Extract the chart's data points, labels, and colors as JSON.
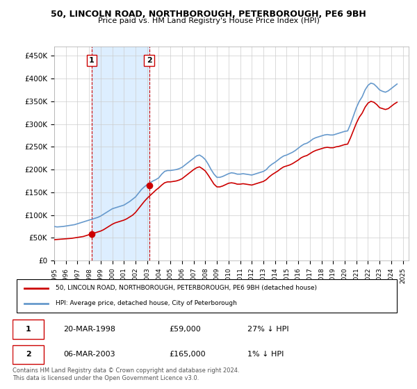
{
  "title": "50, LINCOLN ROAD, NORTHBOROUGH, PETERBOROUGH, PE6 9BH",
  "subtitle": "Price paid vs. HM Land Registry's House Price Index (HPI)",
  "ylabel_ticks": [
    "£0",
    "£50K",
    "£100K",
    "£150K",
    "£200K",
    "£250K",
    "£300K",
    "£350K",
    "£400K",
    "£450K"
  ],
  "ytick_values": [
    0,
    50000,
    100000,
    150000,
    200000,
    250000,
    300000,
    350000,
    400000,
    450000
  ],
  "ylim": [
    0,
    470000
  ],
  "xlim_start": 1995.0,
  "xlim_end": 2025.5,
  "xticks": [
    1995,
    1996,
    1997,
    1998,
    1999,
    2000,
    2001,
    2002,
    2003,
    2004,
    2005,
    2006,
    2007,
    2008,
    2009,
    2010,
    2011,
    2012,
    2013,
    2014,
    2015,
    2016,
    2017,
    2018,
    2019,
    2020,
    2021,
    2022,
    2023,
    2024,
    2025
  ],
  "hpi_line_color": "#6699cc",
  "price_line_color": "#cc0000",
  "purchase_marker_color": "#cc0000",
  "background_color": "#ffffff",
  "plot_bg_color": "#ffffff",
  "shaded_region_color": "#ddeeff",
  "grid_color": "#cccccc",
  "purchase1": {
    "year": 1998.22,
    "value": 59000,
    "label": "1"
  },
  "purchase2": {
    "year": 2003.17,
    "value": 165000,
    "label": "2"
  },
  "legend_line1": "50, LINCOLN ROAD, NORTHBOROUGH, PETERBOROUGH, PE6 9BH (detached house)",
  "legend_line2": "HPI: Average price, detached house, City of Peterborough",
  "table_row1": [
    "1",
    "20-MAR-1998",
    "£59,000",
    "27% ↓ HPI"
  ],
  "table_row2": [
    "2",
    "06-MAR-2003",
    "£165,000",
    "1% ↓ HPI"
  ],
  "footnote": "Contains HM Land Registry data © Crown copyright and database right 2024.\nThis data is licensed under the Open Government Licence v3.0.",
  "hpi_data": {
    "years": [
      1995.0,
      1995.25,
      1995.5,
      1995.75,
      1996.0,
      1996.25,
      1996.5,
      1996.75,
      1997.0,
      1997.25,
      1997.5,
      1997.75,
      1998.0,
      1998.25,
      1998.5,
      1998.75,
      1999.0,
      1999.25,
      1999.5,
      1999.75,
      2000.0,
      2000.25,
      2000.5,
      2000.75,
      2001.0,
      2001.25,
      2001.5,
      2001.75,
      2002.0,
      2002.25,
      2002.5,
      2002.75,
      2003.0,
      2003.25,
      2003.5,
      2003.75,
      2004.0,
      2004.25,
      2004.5,
      2004.75,
      2005.0,
      2005.25,
      2005.5,
      2005.75,
      2006.0,
      2006.25,
      2006.5,
      2006.75,
      2007.0,
      2007.25,
      2007.5,
      2007.75,
      2008.0,
      2008.25,
      2008.5,
      2008.75,
      2009.0,
      2009.25,
      2009.5,
      2009.75,
      2010.0,
      2010.25,
      2010.5,
      2010.75,
      2011.0,
      2011.25,
      2011.5,
      2011.75,
      2012.0,
      2012.25,
      2012.5,
      2012.75,
      2013.0,
      2013.25,
      2013.5,
      2013.75,
      2014.0,
      2014.25,
      2014.5,
      2014.75,
      2015.0,
      2015.25,
      2015.5,
      2015.75,
      2016.0,
      2016.25,
      2016.5,
      2016.75,
      2017.0,
      2017.25,
      2017.5,
      2017.75,
      2018.0,
      2018.25,
      2018.5,
      2018.75,
      2019.0,
      2019.25,
      2019.5,
      2019.75,
      2020.0,
      2020.25,
      2020.5,
      2020.75,
      2021.0,
      2021.25,
      2021.5,
      2021.75,
      2022.0,
      2022.25,
      2022.5,
      2022.75,
      2023.0,
      2023.25,
      2023.5,
      2023.75,
      2024.0,
      2024.25,
      2024.5
    ],
    "values": [
      75000,
      74000,
      74500,
      75000,
      76000,
      77000,
      78000,
      79000,
      81000,
      83000,
      85000,
      87000,
      89000,
      91000,
      93000,
      95000,
      98000,
      102000,
      106000,
      110000,
      114000,
      116000,
      118000,
      120000,
      122000,
      126000,
      130000,
      135000,
      140000,
      148000,
      156000,
      162000,
      167000,
      171000,
      175000,
      178000,
      182000,
      190000,
      196000,
      198000,
      198000,
      199000,
      200000,
      202000,
      205000,
      210000,
      215000,
      220000,
      225000,
      230000,
      232000,
      228000,
      222000,
      212000,
      200000,
      190000,
      183000,
      183000,
      185000,
      188000,
      191000,
      193000,
      192000,
      190000,
      190000,
      191000,
      190000,
      189000,
      188000,
      190000,
      192000,
      194000,
      196000,
      200000,
      207000,
      212000,
      216000,
      221000,
      226000,
      230000,
      232000,
      235000,
      238000,
      242000,
      247000,
      252000,
      256000,
      258000,
      262000,
      267000,
      270000,
      272000,
      274000,
      276000,
      277000,
      276000,
      276000,
      278000,
      280000,
      282000,
      284000,
      285000,
      300000,
      318000,
      336000,
      350000,
      360000,
      375000,
      385000,
      390000,
      388000,
      382000,
      375000,
      372000,
      370000,
      373000,
      378000,
      383000,
      388000
    ]
  },
  "price_data": {
    "years": [
      1995.0,
      1995.25,
      1995.5,
      1995.75,
      1996.0,
      1996.25,
      1996.5,
      1996.75,
      1997.0,
      1997.25,
      1997.5,
      1997.75,
      1998.0,
      1998.25,
      1998.5,
      1998.75,
      1999.0,
      1999.25,
      1999.5,
      1999.75,
      2000.0,
      2000.25,
      2000.5,
      2000.75,
      2001.0,
      2001.25,
      2001.5,
      2001.75,
      2002.0,
      2002.25,
      2002.5,
      2002.75,
      2003.0,
      2003.25,
      2003.5,
      2003.75,
      2004.0,
      2004.25,
      2004.5,
      2004.75,
      2005.0,
      2005.25,
      2005.5,
      2005.75,
      2006.0,
      2006.25,
      2006.5,
      2006.75,
      2007.0,
      2007.25,
      2007.5,
      2007.75,
      2008.0,
      2008.25,
      2008.5,
      2008.75,
      2009.0,
      2009.25,
      2009.5,
      2009.75,
      2010.0,
      2010.25,
      2010.5,
      2010.75,
      2011.0,
      2011.25,
      2011.5,
      2011.75,
      2012.0,
      2012.25,
      2012.5,
      2012.75,
      2013.0,
      2013.25,
      2013.5,
      2013.75,
      2014.0,
      2014.25,
      2014.5,
      2014.75,
      2015.0,
      2015.25,
      2015.5,
      2015.75,
      2016.0,
      2016.25,
      2016.5,
      2016.75,
      2017.0,
      2017.25,
      2017.5,
      2017.75,
      2018.0,
      2018.25,
      2018.5,
      2018.75,
      2019.0,
      2019.25,
      2019.5,
      2019.75,
      2020.0,
      2020.25,
      2020.5,
      2020.75,
      2021.0,
      2021.25,
      2021.5,
      2021.75,
      2022.0,
      2022.25,
      2022.5,
      2022.75,
      2023.0,
      2023.25,
      2023.5,
      2023.75,
      2024.0,
      2024.25,
      2024.5
    ],
    "values": [
      46000,
      46500,
      47000,
      47500,
      48000,
      48500,
      49000,
      50000,
      51000,
      52000,
      53000,
      55000,
      57000,
      59000,
      61000,
      63000,
      65000,
      68000,
      72000,
      76000,
      80000,
      83000,
      85000,
      87000,
      89000,
      92000,
      96000,
      100000,
      106000,
      114000,
      122000,
      130000,
      137000,
      143000,
      149000,
      155000,
      160000,
      166000,
      171000,
      173000,
      173000,
      174000,
      175000,
      177000,
      180000,
      185000,
      190000,
      195000,
      200000,
      204000,
      206000,
      202000,
      197000,
      188000,
      178000,
      168000,
      162000,
      162000,
      164000,
      167000,
      170000,
      171000,
      170000,
      168000,
      168000,
      169000,
      168000,
      167000,
      166000,
      168000,
      170000,
      172000,
      174000,
      178000,
      184000,
      189000,
      193000,
      197000,
      202000,
      206000,
      208000,
      210000,
      213000,
      217000,
      221000,
      226000,
      229000,
      231000,
      235000,
      239000,
      242000,
      244000,
      246000,
      248000,
      249000,
      248000,
      248000,
      250000,
      251000,
      253000,
      255000,
      256000,
      270000,
      286000,
      302000,
      315000,
      324000,
      337000,
      346000,
      350000,
      348000,
      343000,
      336000,
      334000,
      332000,
      334000,
      339000,
      344000,
      348000
    ]
  }
}
